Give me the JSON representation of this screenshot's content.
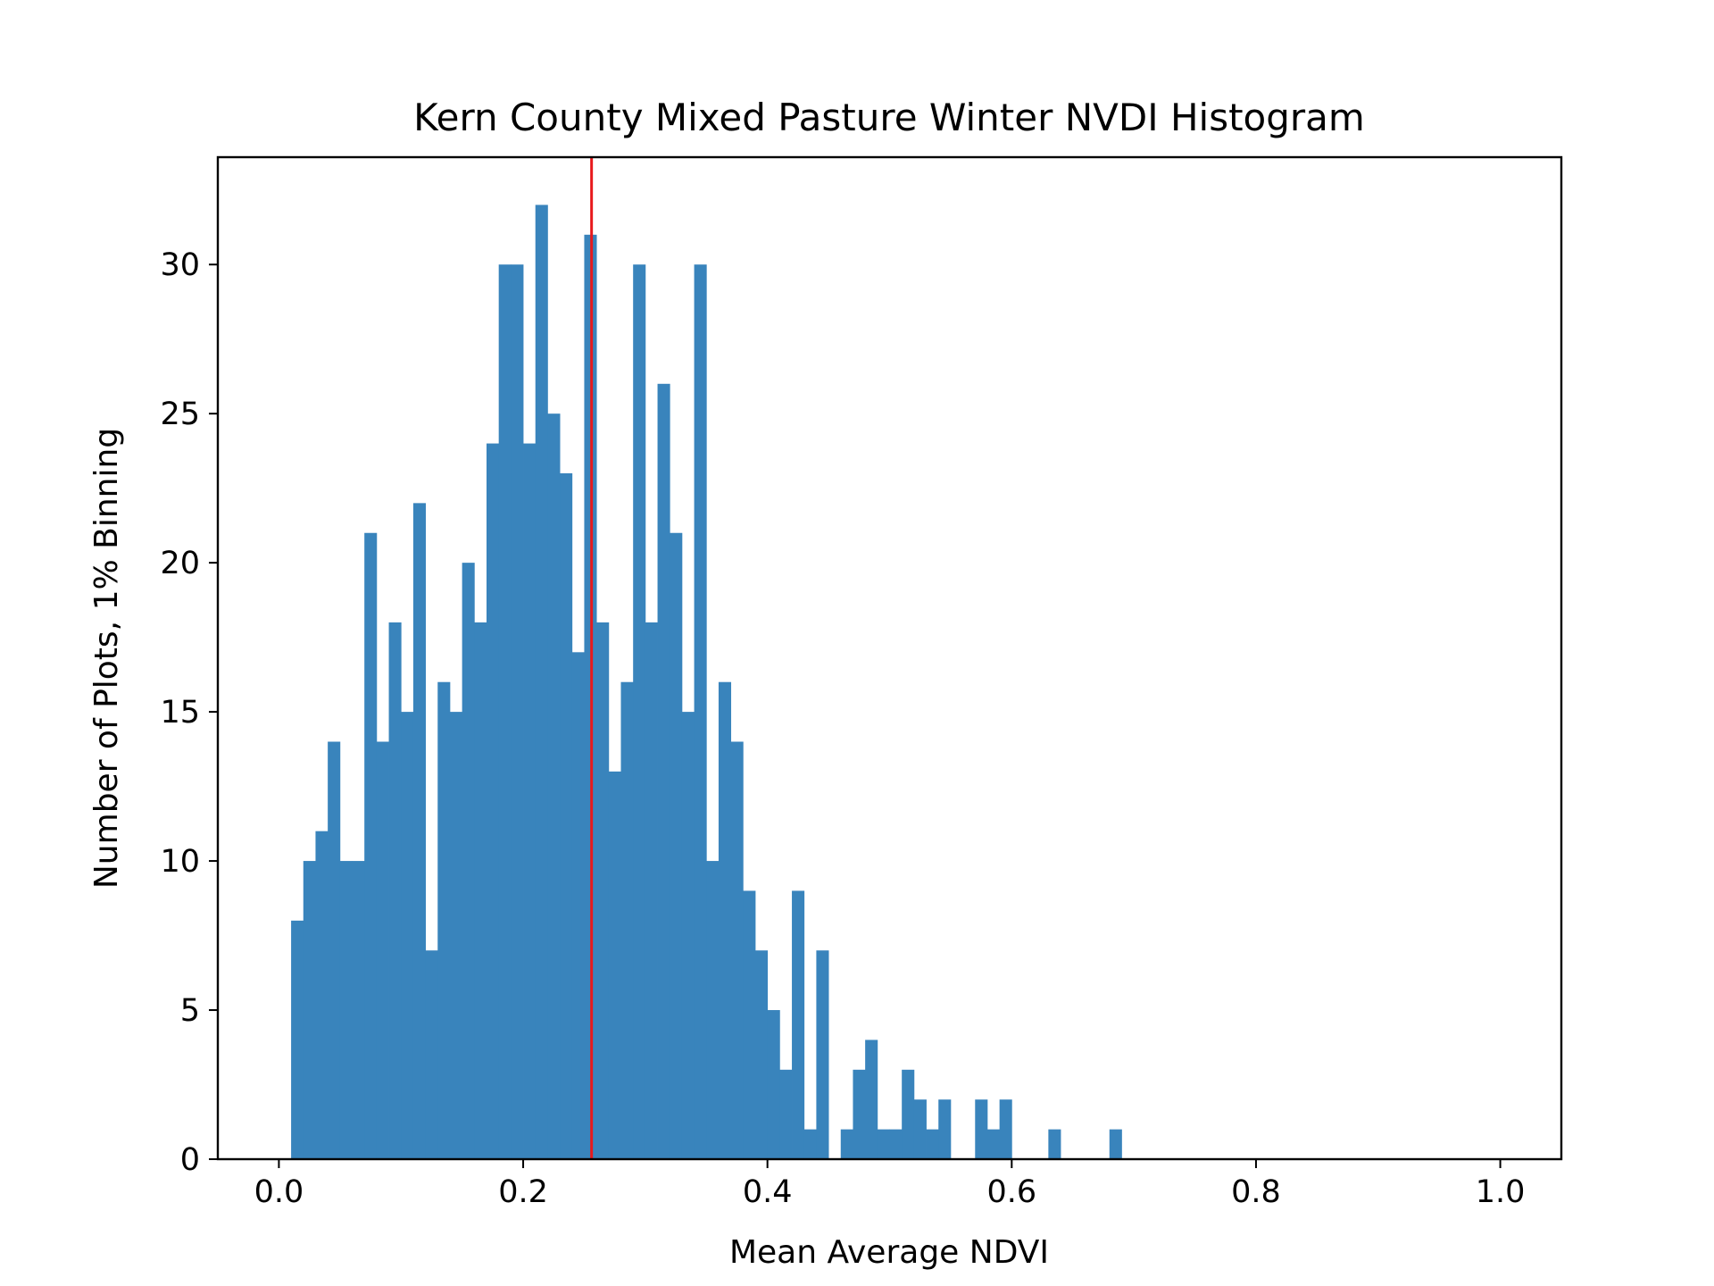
{
  "chart_data": {
    "type": "bar",
    "title": "Kern County Mixed Pasture Winter NVDI Histogram",
    "xlabel": "Mean Average NDVI",
    "ylabel": "Number of Plots, 1% Binning",
    "xlim": [
      -0.05,
      1.05
    ],
    "ylim": [
      0,
      33.6
    ],
    "bin_width": 0.01,
    "bin_start": 0.01,
    "bar_color": "#3984bc",
    "marker_line_color": "#e8191c",
    "marker_line_x": 0.256,
    "x_ticks": [
      {
        "value": 0.0,
        "label": "0.0"
      },
      {
        "value": 0.2,
        "label": "0.2"
      },
      {
        "value": 0.4,
        "label": "0.4"
      },
      {
        "value": 0.6,
        "label": "0.6"
      },
      {
        "value": 0.8,
        "label": "0.8"
      },
      {
        "value": 1.0,
        "label": "1.0"
      }
    ],
    "y_ticks": [
      {
        "value": 0,
        "label": "0"
      },
      {
        "value": 5,
        "label": "5"
      },
      {
        "value": 10,
        "label": "10"
      },
      {
        "value": 15,
        "label": "15"
      },
      {
        "value": 20,
        "label": "20"
      },
      {
        "value": 25,
        "label": "25"
      },
      {
        "value": 30,
        "label": "30"
      }
    ],
    "values": [
      8,
      10,
      11,
      14,
      10,
      10,
      21,
      14,
      18,
      15,
      22,
      7,
      16,
      15,
      20,
      18,
      24,
      30,
      30,
      24,
      32,
      25,
      23,
      17,
      31,
      18,
      13,
      16,
      30,
      18,
      26,
      21,
      15,
      30,
      10,
      16,
      14,
      9,
      7,
      5,
      3,
      9,
      1,
      7,
      0,
      1,
      3,
      4,
      1,
      1,
      3,
      2,
      1,
      2,
      0,
      0,
      2,
      1,
      2,
      0,
      0,
      0,
      1,
      0,
      0,
      0,
      0,
      1
    ]
  }
}
